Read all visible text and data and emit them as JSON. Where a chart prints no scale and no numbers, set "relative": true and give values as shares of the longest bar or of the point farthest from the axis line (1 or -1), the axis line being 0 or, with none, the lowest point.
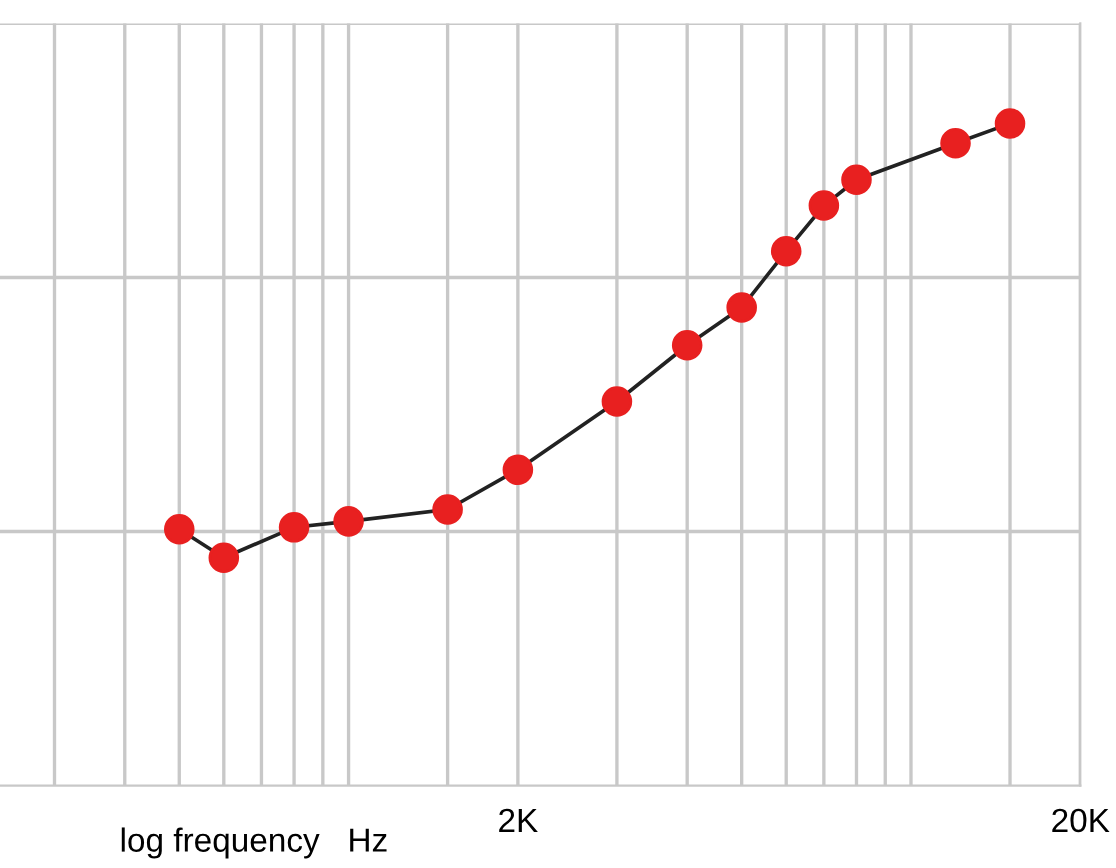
{
  "chart_data": {
    "type": "line",
    "xlabel": "log frequency   Hz",
    "log": "x",
    "relative": true,
    "x": [
      500,
      600,
      800,
      1000,
      1500,
      2000,
      3000,
      4000,
      5000,
      6000,
      7000,
      8000,
      12000,
      15000
    ],
    "series": [
      {
        "color": "#e82020",
        "values": [
          0.387,
          0.344,
          0.39,
          0.399,
          0.417,
          0.477,
          0.58,
          0.665,
          0.722,
          0.807,
          0.876,
          0.915,
          0.97,
          1.0
        ]
      }
    ],
    "xlim": [
      240,
      20000
    ],
    "xticks": [
      {
        "value": 300,
        "label": null
      },
      {
        "value": 400,
        "label": null
      },
      {
        "value": 500,
        "label": null
      },
      {
        "value": 600,
        "label": null
      },
      {
        "value": 700,
        "label": null
      },
      {
        "value": 800,
        "label": null
      },
      {
        "value": 900,
        "label": null
      },
      {
        "value": 1000,
        "label": null
      },
      {
        "value": 1500,
        "label": null
      },
      {
        "value": 2000,
        "label": "2K"
      },
      {
        "value": 3000,
        "label": null
      },
      {
        "value": 4000,
        "label": null
      },
      {
        "value": 5000,
        "label": null
      },
      {
        "value": 6000,
        "label": null
      },
      {
        "value": 7000,
        "label": null
      },
      {
        "value": 8000,
        "label": null
      },
      {
        "value": 9000,
        "label": null
      },
      {
        "value": 10000,
        "label": null
      },
      {
        "value": 15000,
        "label": null
      },
      {
        "value": 20000,
        "label": "20K"
      }
    ],
    "grid": true,
    "marker": "circle",
    "line_style": "solid",
    "tick_labels": "x"
  }
}
